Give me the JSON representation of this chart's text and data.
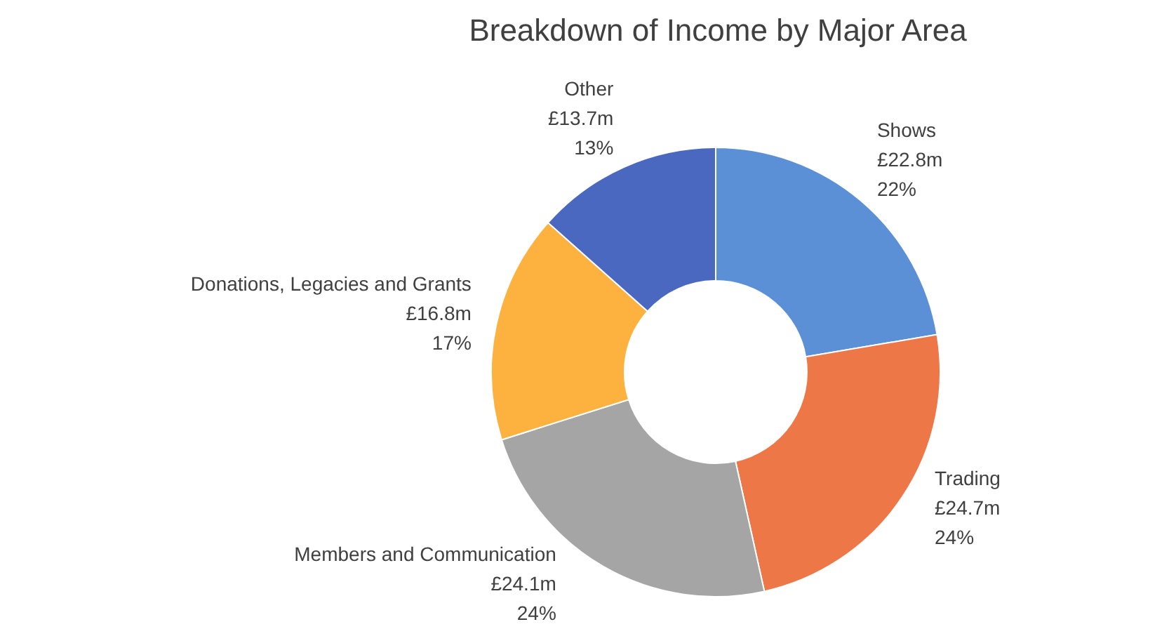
{
  "chart_data": {
    "type": "donut",
    "title": "Breakdown of Income by Major Area",
    "categories": [
      "Shows",
      "Trading",
      "Members and Communication",
      "Donations, Legacies and Grants",
      "Other"
    ],
    "values": [
      22.8,
      24.7,
      24.1,
      16.8,
      13.7
    ],
    "colors": [
      "#5b8fd6",
      "#ee7748",
      "#a5a5a5",
      "#fdb13e",
      "#4a68c0"
    ],
    "value_labels": [
      "£22.8m",
      "£24.7m",
      "£24.1m",
      "£16.8m",
      "£13.7m"
    ],
    "annotations": [
      "22%",
      "24%",
      "24%",
      "17%",
      "13%"
    ],
    "legend": false
  }
}
